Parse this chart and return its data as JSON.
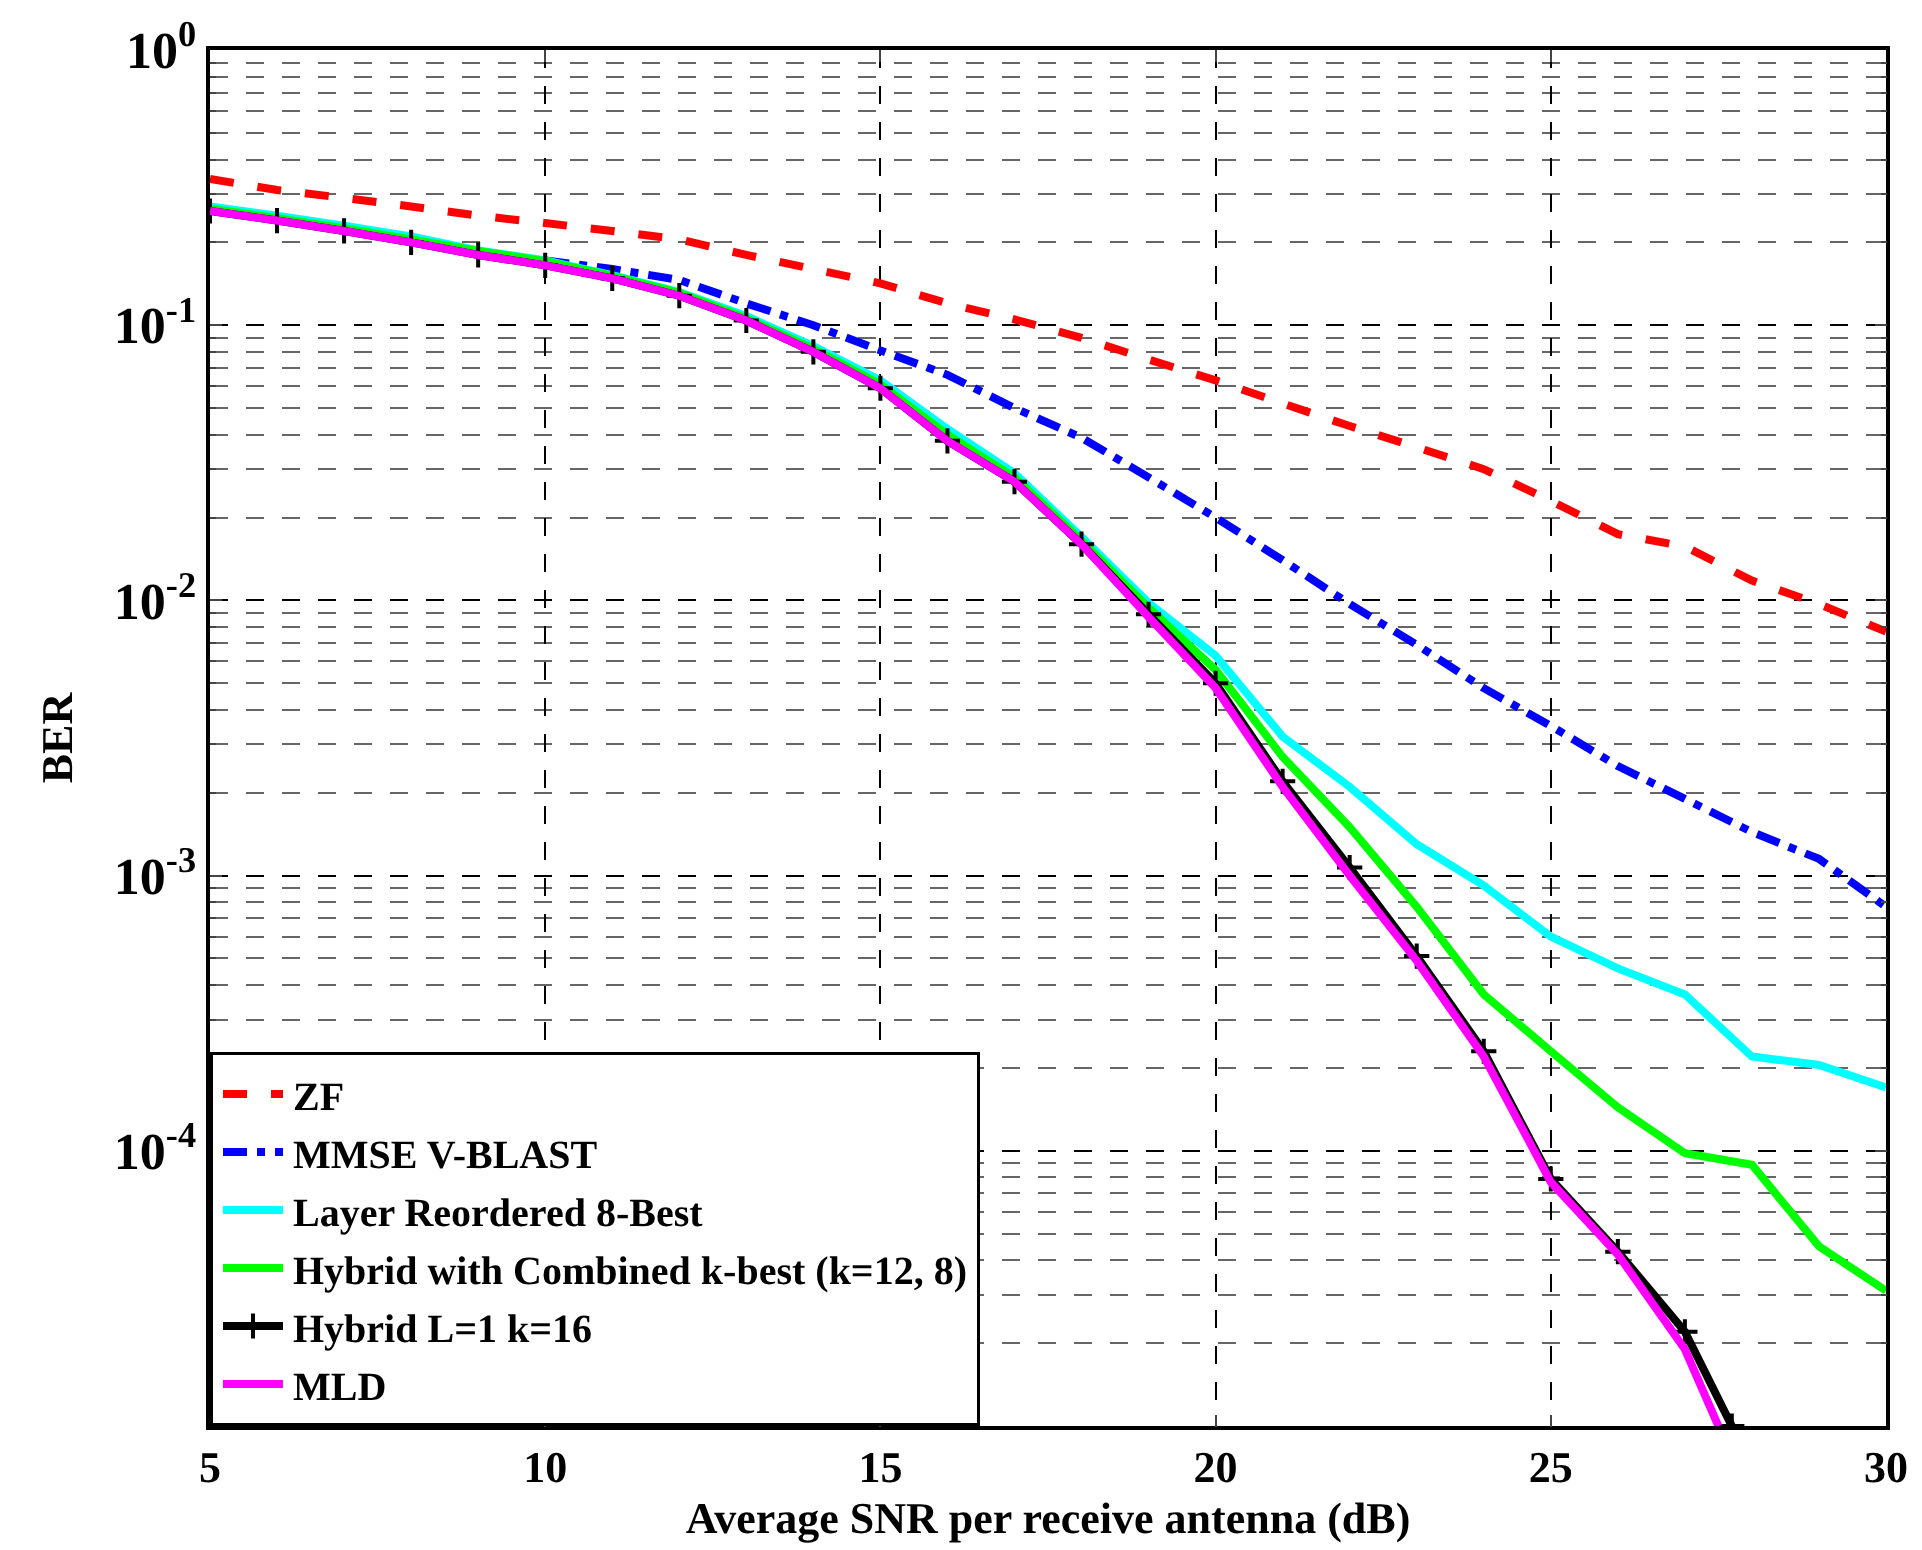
{
  "chart_data": {
    "type": "line",
    "xlabel": "Average SNR per receive antenna (dB)",
    "ylabel": "BER",
    "log": "y",
    "grid": true,
    "legend": "bottom left",
    "xlim": [
      5,
      30
    ],
    "xticks": [
      5,
      10,
      15,
      20,
      25,
      30
    ],
    "ylim": [
      1e-05,
      1
    ],
    "yticks": [
      {
        "value": 1,
        "label": "10$^{0}$"
      },
      {
        "value": 0.1,
        "label": "10$^{-1}$"
      },
      {
        "value": 0.01,
        "label": "10$^{-2}$"
      },
      {
        "value": 0.001,
        "label": "10$^{-3}$"
      },
      {
        "value": 0.0001,
        "label": "10$^{-4}$"
      }
    ],
    "x": [
      5,
      6,
      7,
      8,
      9,
      10,
      11,
      12,
      13,
      14,
      15,
      16,
      17,
      18,
      19,
      20,
      21,
      22,
      23,
      24,
      25,
      26,
      27,
      28,
      29,
      30
    ],
    "series": [
      {
        "name": "ZF",
        "color": "#ff0000",
        "line_style": "dashed",
        "marker": "none",
        "values": [
          0.34,
          0.31,
          0.29,
          0.27,
          0.25,
          0.235,
          0.22,
          0.205,
          0.18,
          0.16,
          0.142,
          0.12,
          0.105,
          0.09,
          0.075,
          0.063,
          0.052,
          0.043,
          0.036,
          0.03,
          0.023,
          0.0174,
          0.0157,
          0.0118,
          0.0097,
          0.0077
        ]
      },
      {
        "name": "MMSE V-BLAST",
        "color": "#0000ff",
        "line_style": "dashdot",
        "marker": "none",
        "values": [
          null,
          null,
          null,
          null,
          null,
          0.172,
          0.16,
          0.146,
          0.12,
          0.1,
          0.081,
          0.066,
          0.05,
          0.039,
          0.028,
          0.02,
          0.014,
          0.0097,
          0.0069,
          0.0048,
          0.0035,
          0.0025,
          0.0019,
          0.00144,
          0.00115,
          0.00077
        ]
      },
      {
        "name": "Layer Reordered 8-Best",
        "color": "#00ffff",
        "line_style": "solid",
        "marker": "none",
        "values": [
          0.27,
          0.25,
          0.23,
          0.21,
          0.187,
          0.172,
          0.152,
          0.132,
          0.108,
          0.084,
          0.063,
          0.042,
          0.029,
          0.017,
          0.0098,
          0.0063,
          0.0032,
          0.0021,
          0.0013,
          0.00092,
          0.0006,
          0.00046,
          0.00037,
          0.00022,
          0.000205,
          0.00017
        ]
      },
      {
        "name": "Hybrid with Combined k-best (k=12, 8)",
        "color": "#00ff00",
        "line_style": "solid",
        "marker": "none",
        "values": [
          0.265,
          0.245,
          0.225,
          0.205,
          0.186,
          0.171,
          0.151,
          0.131,
          0.106,
          0.082,
          0.061,
          0.04,
          0.028,
          0.0165,
          0.0094,
          0.0056,
          0.0027,
          0.0015,
          0.00077,
          0.00037,
          0.00023,
          0.000144,
          9.8e-05,
          8.9e-05,
          4.5e-05,
          3.1e-05
        ]
      },
      {
        "name": "Hybrid L=1 k=16",
        "color": "#000000",
        "line_style": "solid",
        "marker": "cross",
        "x": [
          5,
          6,
          7,
          8,
          9,
          10,
          11,
          12,
          13,
          14,
          15,
          16,
          17,
          18,
          19,
          20,
          21,
          22,
          23,
          24,
          25,
          26,
          27,
          27.7
        ],
        "values": [
          0.26,
          0.24,
          0.22,
          0.2,
          0.18,
          0.165,
          0.148,
          0.128,
          0.104,
          0.08,
          0.059,
          0.038,
          0.027,
          0.016,
          0.0089,
          0.005,
          0.0022,
          0.00107,
          0.00051,
          0.00023,
          7.9e-05,
          4.3e-05,
          2.2e-05,
          1e-05
        ]
      },
      {
        "name": "MLD",
        "color": "#ff00ff",
        "line_style": "solid",
        "marker": "none",
        "x": [
          5,
          6,
          7,
          8,
          9,
          10,
          11,
          12,
          13,
          14,
          15,
          16,
          17,
          18,
          19,
          20,
          21,
          22,
          23,
          24,
          25,
          26,
          27,
          27.5
        ],
        "values": [
          0.26,
          0.24,
          0.22,
          0.2,
          0.18,
          0.165,
          0.148,
          0.128,
          0.104,
          0.08,
          0.059,
          0.038,
          0.027,
          0.016,
          0.0087,
          0.0048,
          0.0021,
          0.001,
          0.00049,
          0.00022,
          7.7e-05,
          4.2e-05,
          1.9e-05,
          1e-05
        ]
      }
    ]
  }
}
